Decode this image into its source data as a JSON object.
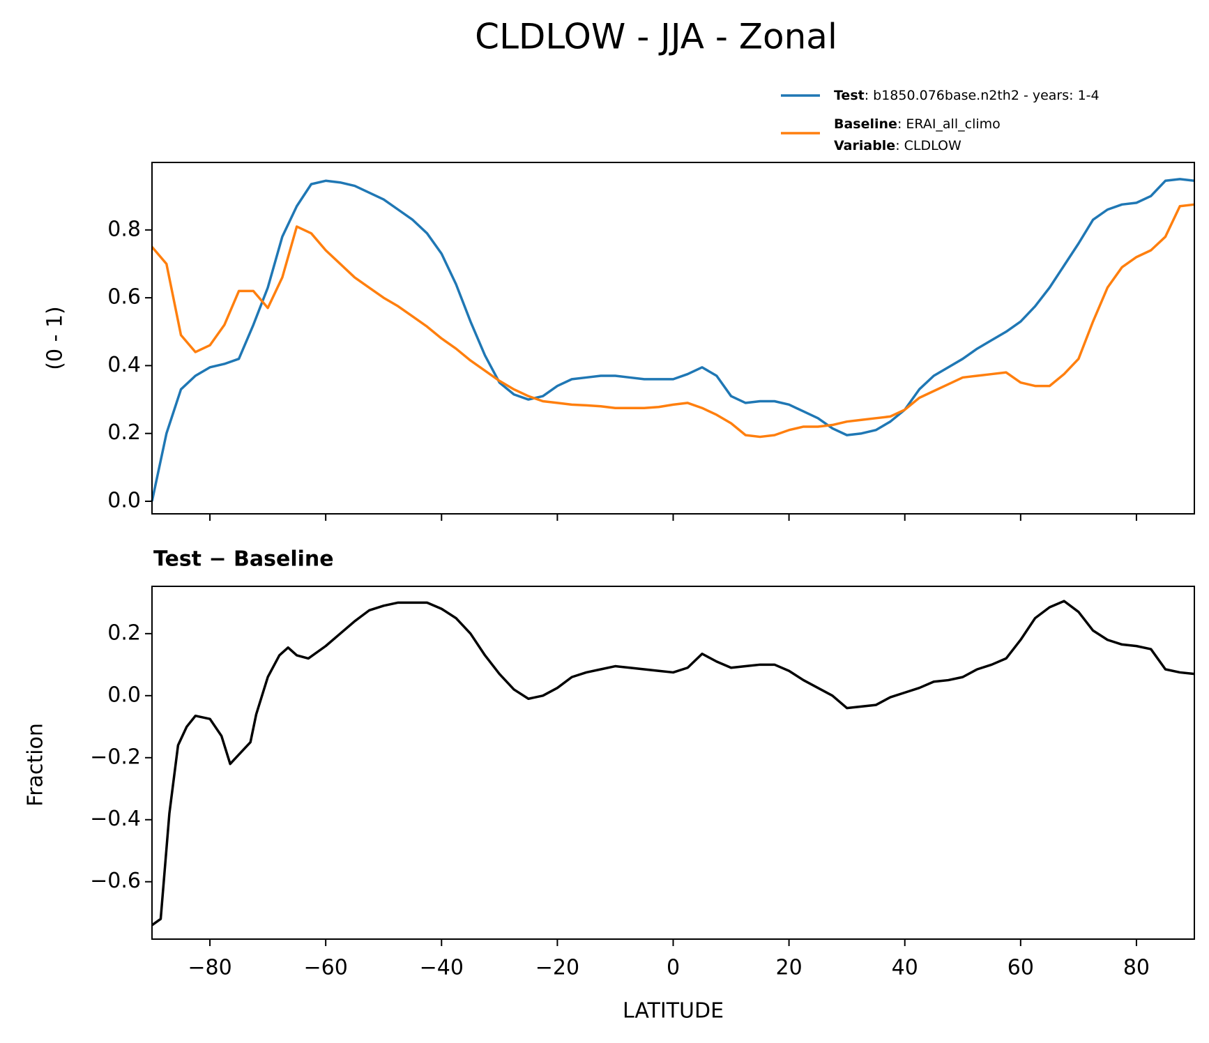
{
  "chart_data": [
    {
      "type": "line",
      "title": "CLDLOW - JJA - Zonal",
      "ylabel": "(0 - 1)",
      "xlim": [
        -90,
        90
      ],
      "xticks": [
        -80,
        -60,
        -40,
        -20,
        0,
        20,
        40,
        60,
        80
      ],
      "ylim": [
        -0.037,
        0.999
      ],
      "yticks": [
        {
          "value": 0,
          "label": "0.0"
        },
        0.2,
        0.4,
        0.6,
        0.8
      ],
      "x": [
        -90,
        -87.5,
        -85,
        -82.5,
        -80,
        -77.5,
        -75,
        -72.5,
        -70,
        -67.5,
        -65,
        -62.5,
        -60,
        -57.5,
        -55,
        -52.5,
        -50,
        -47.5,
        -45,
        -42.5,
        -40,
        -37.5,
        -35,
        -32.5,
        -30,
        -27.5,
        -25,
        -22.5,
        -20,
        -17.5,
        -15,
        -12.5,
        -10,
        -7.5,
        -5,
        -2.5,
        0,
        2.5,
        5,
        7.5,
        10,
        12.5,
        15,
        17.5,
        20,
        22.5,
        25,
        27.5,
        30,
        32.5,
        35,
        37.5,
        40,
        42.5,
        45,
        47.5,
        50,
        52.5,
        55,
        57.5,
        60,
        62.5,
        65,
        67.5,
        70,
        72.5,
        75,
        77.5,
        80,
        82.5,
        85,
        87.5,
        90
      ],
      "series": [
        {
          "name": "Test",
          "description": ": b1850.076base.n2th2 - years: 1-4",
          "color": "#1f77b4",
          "values": [
            0.0,
            0.2,
            0.33,
            0.37,
            0.395,
            0.405,
            0.42,
            0.52,
            0.63,
            0.78,
            0.87,
            0.935,
            0.945,
            0.94,
            0.93,
            0.91,
            0.89,
            0.86,
            0.83,
            0.79,
            0.73,
            0.64,
            0.53,
            0.43,
            0.35,
            0.315,
            0.3,
            0.31,
            0.34,
            0.36,
            0.365,
            0.37,
            0.37,
            0.365,
            0.36,
            0.36,
            0.36,
            0.375,
            0.395,
            0.37,
            0.31,
            0.29,
            0.295,
            0.295,
            0.285,
            0.265,
            0.245,
            0.215,
            0.195,
            0.2,
            0.21,
            0.235,
            0.27,
            0.33,
            0.37,
            0.395,
            0.42,
            0.45,
            0.475,
            0.5,
            0.53,
            0.575,
            0.63,
            0.695,
            0.76,
            0.83,
            0.86,
            0.875,
            0.88,
            0.9,
            0.945,
            0.95,
            0.945
          ]
        },
        {
          "name": "Baseline",
          "description": ": ERAI_all_climo",
          "color": "#ff7f0e",
          "values": [
            0.75,
            0.7,
            0.49,
            0.44,
            0.46,
            0.52,
            0.62,
            0.62,
            0.57,
            0.66,
            0.81,
            0.79,
            0.74,
            0.7,
            0.66,
            0.63,
            0.6,
            0.575,
            0.545,
            0.515,
            0.48,
            0.45,
            0.415,
            0.385,
            0.355,
            0.33,
            0.31,
            0.295,
            0.29,
            0.285,
            0.283,
            0.28,
            0.275,
            0.275,
            0.275,
            0.278,
            0.285,
            0.29,
            0.275,
            0.255,
            0.23,
            0.195,
            0.19,
            0.195,
            0.21,
            0.22,
            0.22,
            0.225,
            0.235,
            0.24,
            0.245,
            0.25,
            0.27,
            0.305,
            0.325,
            0.345,
            0.365,
            0.37,
            0.375,
            0.38,
            0.35,
            0.34,
            0.34,
            0.375,
            0.42,
            0.53,
            0.63,
            0.69,
            0.72,
            0.74,
            0.78,
            0.87,
            0.875
          ]
        }
      ],
      "legend_note": {
        "name": "Variable",
        "description": ": CLDLOW"
      }
    },
    {
      "type": "line",
      "subtitle": "Test − Baseline",
      "ylabel": "Fraction",
      "xlabel": "LATITUDE",
      "xlim": [
        -90,
        90
      ],
      "xticks": [
        {
          "value": -80,
          "label": "−80"
        },
        {
          "value": -60,
          "label": "−60"
        },
        {
          "value": -40,
          "label": "−40"
        },
        {
          "value": -20,
          "label": "−20"
        },
        0,
        20,
        40,
        60,
        80
      ],
      "ylim": [
        -0.785,
        0.3525
      ],
      "yticks": [
        {
          "value": -0.6,
          "label": "−0.6"
        },
        {
          "value": -0.4,
          "label": "−0.4"
        },
        {
          "value": -0.2,
          "label": "−0.2"
        },
        {
          "value": 0,
          "label": "0.0"
        },
        0.2
      ],
      "x": [
        -90,
        -88.5,
        -87,
        -85.5,
        -84,
        -82.5,
        -80,
        -78,
        -76.5,
        -75,
        -73,
        -72,
        -70,
        -68,
        -66.5,
        -65,
        -63,
        -60,
        -57.5,
        -55,
        -52.5,
        -50,
        -47.5,
        -45,
        -42.5,
        -40,
        -37.5,
        -35,
        -32.5,
        -30,
        -27.5,
        -25,
        -22.5,
        -20,
        -17.5,
        -15,
        -12.5,
        -10,
        -7.5,
        -5,
        -2.5,
        0,
        2.5,
        5,
        7.5,
        10,
        12.5,
        15,
        17.5,
        20,
        22.5,
        25,
        27.5,
        30,
        32.5,
        35,
        37.5,
        40,
        42.5,
        45,
        47.5,
        50,
        52.5,
        55,
        57.5,
        60,
        62.5,
        65,
        67.5,
        70,
        72.5,
        75,
        77.5,
        80,
        82.5,
        85,
        87.5,
        90
      ],
      "series": [
        {
          "color": "#000000",
          "values": [
            -0.74,
            -0.72,
            -0.38,
            -0.16,
            -0.1,
            -0.065,
            -0.075,
            -0.13,
            -0.22,
            -0.19,
            -0.15,
            -0.06,
            0.06,
            0.13,
            0.155,
            0.13,
            0.12,
            0.16,
            0.2,
            0.24,
            0.275,
            0.29,
            0.3,
            0.3,
            0.3,
            0.28,
            0.25,
            0.2,
            0.13,
            0.07,
            0.02,
            -0.01,
            0.0,
            0.025,
            0.06,
            0.075,
            0.085,
            0.095,
            0.09,
            0.085,
            0.08,
            0.075,
            0.09,
            0.135,
            0.11,
            0.09,
            0.095,
            0.1,
            0.1,
            0.08,
            0.05,
            0.025,
            0.0,
            -0.04,
            -0.035,
            -0.03,
            -0.005,
            0.01,
            0.025,
            0.045,
            0.05,
            0.06,
            0.085,
            0.1,
            0.12,
            0.18,
            0.25,
            0.285,
            0.305,
            0.27,
            0.21,
            0.18,
            0.165,
            0.16,
            0.15,
            0.085,
            0.075,
            0.07
          ]
        }
      ]
    }
  ]
}
